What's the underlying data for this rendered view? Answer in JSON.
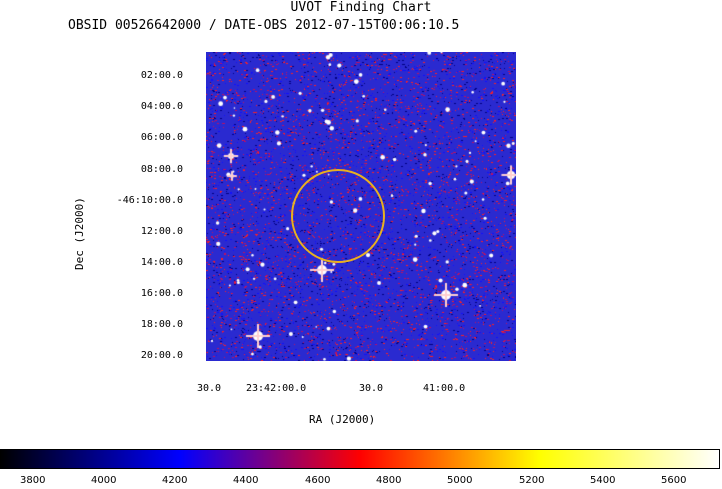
{
  "header": {
    "title": "UVOT Finding Chart",
    "subtitle": "OBSID 00526642000 / DATE-OBS 2012-07-15T00:06:10.5"
  },
  "axes": {
    "y_label": "Dec (J2000)",
    "x_label": "RA (J2000)",
    "y_ticks": [
      "02:00.0",
      "04:00.0",
      "06:00.0",
      "08:00.0",
      "-46:10:00.0",
      "12:00.0",
      "14:00.0",
      "16:00.0",
      "18:00.0",
      "20:00.0"
    ],
    "x_ticks": [
      "30.0",
      "23:42:00.0",
      "30.0",
      "41:00.0"
    ]
  },
  "colorbar": {
    "ticks": [
      "3800",
      "4000",
      "4200",
      "4400",
      "4600",
      "4800",
      "5000",
      "5200",
      "5400",
      "5600"
    ],
    "colors": [
      "#000000",
      "#0000ff",
      "#ff0000",
      "#ffff00",
      "#ffffff"
    ]
  },
  "image": {
    "background_color": "#2a2ad0",
    "noise_colors": [
      "#ff2020",
      "#c01060",
      "#1010ff",
      "#000080"
    ],
    "circle_color": "#e8b020"
  }
}
